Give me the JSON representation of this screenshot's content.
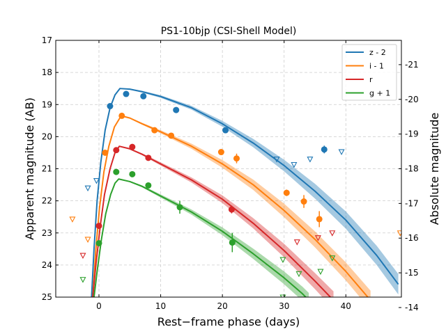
{
  "chart_data": {
    "type": "line",
    "title": "PS1-10bjp (CSI-Shell Model)",
    "xlabel": "Rest−frame phase (days)",
    "ylabel": "Apparent magnitude (AB)",
    "ylabel_right": "Absolute magnitude",
    "xlim": [
      -7,
      49
    ],
    "ylim": [
      25,
      17
    ],
    "ylim_right": [
      -14.3,
      -21.7
    ],
    "x_ticks": [
      0,
      10,
      20,
      30,
      40
    ],
    "y_ticks": [
      17,
      18,
      19,
      20,
      21,
      22,
      23,
      24,
      25
    ],
    "y_ticks_right": [
      -14,
      -15,
      -16,
      -17,
      -18,
      -19,
      -20,
      -21
    ],
    "grid": true,
    "legend_position": "top-right",
    "series": [
      {
        "name": "z - 2",
        "color": "#1f77b4",
        "peak_x": 3.4,
        "peak_y": 18.5,
        "model": [
          [
            -1.2,
            25
          ],
          [
            -0.8,
            23.5
          ],
          [
            -0.3,
            22.0
          ],
          [
            0.3,
            20.8
          ],
          [
            1.0,
            19.8
          ],
          [
            1.8,
            19.1
          ],
          [
            2.6,
            18.7
          ],
          [
            3.4,
            18.5
          ],
          [
            5,
            18.52
          ],
          [
            7,
            18.6
          ],
          [
            10,
            18.75
          ],
          [
            15,
            19.1
          ],
          [
            20,
            19.6
          ],
          [
            25,
            20.2
          ],
          [
            30,
            20.9
          ],
          [
            35,
            21.7
          ],
          [
            40,
            22.6
          ],
          [
            45,
            23.7
          ],
          [
            48.5,
            24.6
          ]
        ],
        "band_halfwidth": [
          0,
          0,
          0,
          0,
          0,
          0,
          0,
          0,
          0.02,
          0.03,
          0.04,
          0.06,
          0.09,
          0.13,
          0.18,
          0.23,
          0.27,
          0.3,
          0.32
        ],
        "detections": [
          [
            1.8,
            19.05,
            0.05
          ],
          [
            4.4,
            18.67,
            0.05
          ],
          [
            7.2,
            18.74,
            0.05
          ],
          [
            12.5,
            19.17,
            0.05
          ],
          [
            20.5,
            19.8,
            0.05
          ],
          [
            36.5,
            20.4,
            0.12
          ]
        ],
        "upper_limits": [
          [
            -1.8,
            21.6
          ],
          [
            -0.4,
            21.37
          ],
          [
            28.8,
            20.7
          ],
          [
            31.6,
            20.87
          ],
          [
            34.2,
            20.7
          ],
          [
            39.3,
            20.47
          ]
        ]
      },
      {
        "name": "i - 1",
        "color": "#ff7f0e",
        "peak_x": 3.6,
        "peak_y": 19.35,
        "model": [
          [
            -1.0,
            25
          ],
          [
            -0.5,
            23.5
          ],
          [
            0.1,
            22.2
          ],
          [
            0.8,
            21.1
          ],
          [
            1.6,
            20.3
          ],
          [
            2.5,
            19.7
          ],
          [
            3.6,
            19.35
          ],
          [
            5,
            19.42
          ],
          [
            7,
            19.6
          ],
          [
            10,
            19.85
          ],
          [
            15,
            20.3
          ],
          [
            20,
            20.85
          ],
          [
            25,
            21.5
          ],
          [
            30,
            22.3
          ],
          [
            35,
            23.2
          ],
          [
            40,
            24.2
          ],
          [
            44,
            25.1
          ]
        ],
        "band_halfwidth": [
          0,
          0,
          0,
          0,
          0,
          0,
          0,
          0.02,
          0.03,
          0.05,
          0.08,
          0.12,
          0.16,
          0.21,
          0.25,
          0.28,
          0.3
        ],
        "detections": [
          [
            1.0,
            20.5,
            0.05
          ],
          [
            3.7,
            19.35,
            0.05
          ],
          [
            9.0,
            19.8,
            0.05
          ],
          [
            11.7,
            19.97,
            0.05
          ],
          [
            19.8,
            20.48,
            0.05
          ],
          [
            22.3,
            20.68,
            0.15
          ],
          [
            30.4,
            21.75,
            0.1
          ],
          [
            33.2,
            22.02,
            0.2
          ],
          [
            35.7,
            22.57,
            0.25
          ]
        ],
        "upper_limits": [
          [
            -4.3,
            22.57
          ],
          [
            -1.8,
            23.2
          ],
          [
            48.8,
            23.0
          ]
        ]
      },
      {
        "name": "r",
        "color": "#d62728",
        "peak_x": 3.3,
        "peak_y": 20.3,
        "model": [
          [
            -1.0,
            25
          ],
          [
            -0.5,
            24.0
          ],
          [
            0.2,
            22.8
          ],
          [
            0.9,
            21.8
          ],
          [
            1.8,
            21.0
          ],
          [
            2.6,
            20.5
          ],
          [
            3.3,
            20.3
          ],
          [
            5,
            20.38
          ],
          [
            7,
            20.55
          ],
          [
            10,
            20.85
          ],
          [
            15,
            21.35
          ],
          [
            20,
            21.95
          ],
          [
            25,
            22.7
          ],
          [
            30,
            23.55
          ],
          [
            35,
            24.5
          ],
          [
            38,
            25.1
          ]
        ],
        "band_halfwidth": [
          0,
          0,
          0,
          0,
          0,
          0,
          0,
          0.02,
          0.03,
          0.05,
          0.08,
          0.12,
          0.16,
          0.21,
          0.25,
          0.28
        ],
        "detections": [
          [
            0.0,
            22.78,
            0.05
          ],
          [
            2.8,
            20.42,
            0.05
          ],
          [
            5.4,
            20.32,
            0.05
          ],
          [
            8.0,
            20.66,
            0.05
          ],
          [
            21.5,
            22.27,
            0.12
          ]
        ],
        "upper_limits": [
          [
            -2.6,
            23.7
          ],
          [
            32.1,
            23.28
          ],
          [
            35.5,
            23.15
          ],
          [
            37.8,
            23.0
          ]
        ]
      },
      {
        "name": "g + 1",
        "color": "#2ca02c",
        "peak_x": 3.2,
        "peak_y": 21.32,
        "model": [
          [
            -0.8,
            25
          ],
          [
            -0.3,
            24.2
          ],
          [
            0.4,
            23.2
          ],
          [
            1.1,
            22.4
          ],
          [
            1.9,
            21.8
          ],
          [
            2.6,
            21.45
          ],
          [
            3.2,
            21.32
          ],
          [
            5,
            21.4
          ],
          [
            7,
            21.55
          ],
          [
            10,
            21.85
          ],
          [
            15,
            22.35
          ],
          [
            20,
            22.95
          ],
          [
            25,
            23.65
          ],
          [
            30,
            24.4
          ],
          [
            33,
            24.9
          ],
          [
            34,
            25.1
          ]
        ],
        "band_halfwidth": [
          0,
          0,
          0,
          0,
          0,
          0,
          0,
          0.02,
          0.03,
          0.05,
          0.08,
          0.12,
          0.16,
          0.2,
          0.22,
          0.23
        ],
        "detections": [
          [
            0.0,
            23.32,
            0.05
          ],
          [
            2.8,
            21.1,
            0.05
          ],
          [
            5.4,
            21.17,
            0.05
          ],
          [
            8.0,
            21.52,
            0.05
          ],
          [
            13.1,
            22.2,
            0.2
          ],
          [
            21.6,
            23.3,
            0.3
          ]
        ],
        "upper_limits": [
          [
            -2.6,
            24.45
          ],
          [
            29.8,
            23.83
          ],
          [
            32.4,
            24.27
          ],
          [
            35.9,
            24.2
          ],
          [
            37.8,
            23.78
          ],
          [
            29.8,
            25.0
          ]
        ]
      }
    ]
  }
}
